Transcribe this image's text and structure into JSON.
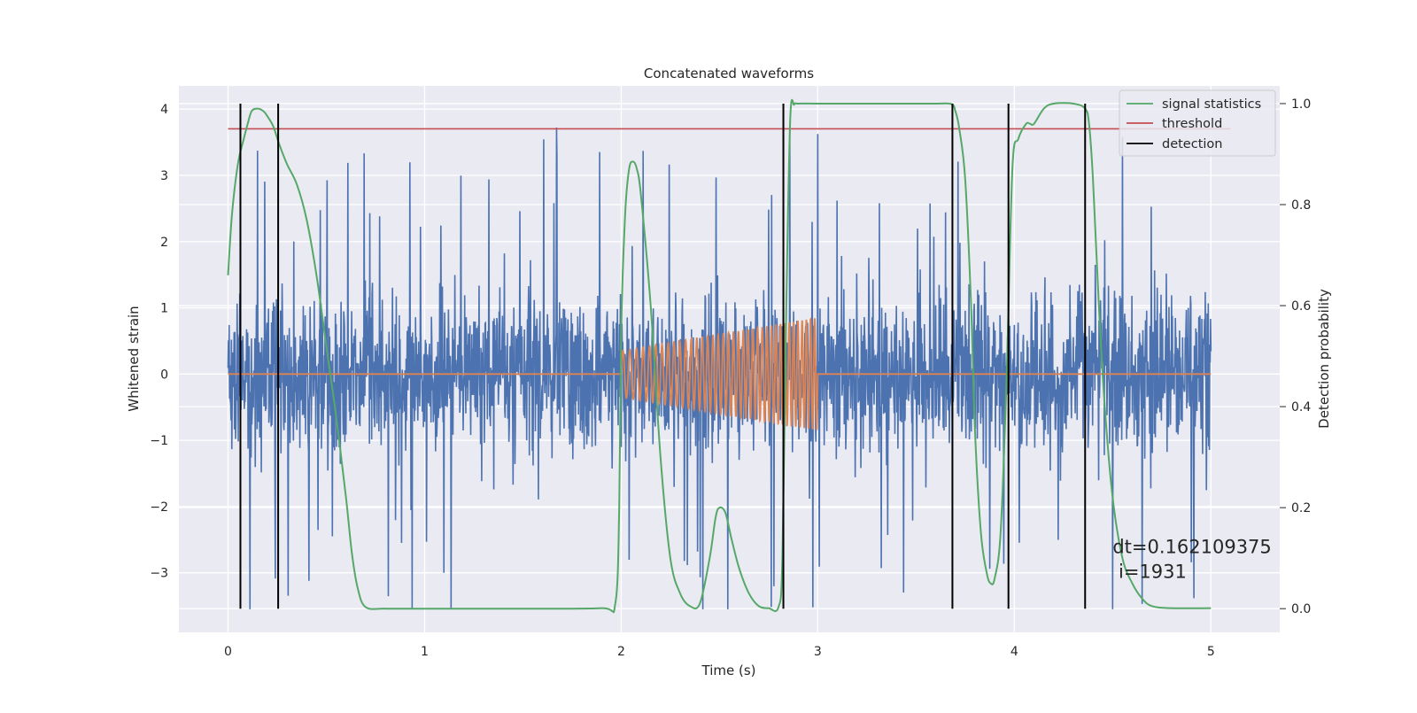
{
  "chart_data": {
    "type": "line",
    "title": "Concatenated waveforms",
    "xlabel": "Time (s)",
    "ylabel": "Whitened strain",
    "y2label": "Detection probability",
    "xlim": [
      -0.25,
      5.35
    ],
    "ylim": [
      -3.9,
      4.35
    ],
    "y2lim": [
      -0.047,
      1.035
    ],
    "xticks": [
      0,
      1,
      2,
      3,
      4,
      5
    ],
    "yticks": [
      -3,
      -2,
      -1,
      0,
      1,
      2,
      3,
      4
    ],
    "y2ticks": [
      0.0,
      0.2,
      0.4,
      0.6,
      0.8,
      1.0
    ],
    "xtick_labels": [
      "0",
      "1",
      "2",
      "3",
      "4",
      "5"
    ],
    "ytick_labels": [
      "−3",
      "−2",
      "−1",
      "0",
      "1",
      "2",
      "3",
      "4"
    ],
    "y2tick_labels": [
      "0.0",
      "0.2",
      "0.4",
      "0.6",
      "0.8",
      "1.0"
    ],
    "grid": true,
    "legend": {
      "position": "top-right",
      "entries": [
        "signal statistics",
        "threshold",
        "detection"
      ]
    },
    "series": [
      {
        "kind": "noise",
        "color": "#4c72b0",
        "x_range": [
          0,
          5
        ],
        "amplitude_envelope": [
          -3.55,
          4.0
        ]
      },
      {
        "kind": "injected_signal",
        "color": "#dd8452",
        "x_range": [
          0,
          5
        ],
        "chirp_window": [
          2.0,
          3.0
        ],
        "amp_start": 0.35,
        "amp_end": 0.85
      },
      {
        "name": "signal statistics",
        "axis": "y2",
        "color": "#55a868",
        "x": [
          0,
          0.02,
          0.05,
          0.08,
          0.1,
          0.12,
          0.15,
          0.18,
          0.2,
          0.23,
          0.26,
          0.3,
          0.35,
          0.4,
          0.45,
          0.5,
          0.55,
          0.6,
          0.63,
          0.66,
          0.7,
          0.8,
          1.0,
          1.5,
          1.9,
          1.97,
          1.99,
          2.0,
          2.02,
          2.04,
          2.06,
          2.08,
          2.1,
          2.15,
          2.2,
          2.25,
          2.3,
          2.35,
          2.4,
          2.45,
          2.48,
          2.5,
          2.53,
          2.56,
          2.6,
          2.65,
          2.7,
          2.75,
          2.8,
          2.82,
          2.84,
          2.86,
          2.88,
          2.9,
          3.0,
          3.3,
          3.6,
          3.68,
          3.7,
          3.72,
          3.75,
          3.78,
          3.8,
          3.83,
          3.86,
          3.88,
          3.9,
          3.93,
          3.96,
          3.99,
          4.02,
          4.06,
          4.08,
          4.1,
          4.15,
          4.2,
          4.3,
          4.36,
          4.38,
          4.4,
          4.43,
          4.46,
          4.5,
          4.55,
          4.6,
          4.65,
          4.7,
          4.8,
          5.0
        ],
        "values": [
          0.66,
          0.78,
          0.88,
          0.93,
          0.96,
          0.985,
          0.99,
          0.985,
          0.975,
          0.955,
          0.92,
          0.88,
          0.84,
          0.77,
          0.66,
          0.52,
          0.38,
          0.22,
          0.11,
          0.04,
          0.003,
          0.0,
          0.0,
          0.0,
          0.001,
          0.01,
          0.2,
          0.55,
          0.78,
          0.87,
          0.885,
          0.87,
          0.82,
          0.6,
          0.3,
          0.1,
          0.03,
          0.005,
          0.01,
          0.1,
          0.18,
          0.2,
          0.19,
          0.14,
          0.08,
          0.03,
          0.005,
          0.001,
          0.003,
          0.1,
          0.6,
          0.97,
          0.998,
          1.0,
          1.0,
          1.0,
          1.0,
          0.999,
          0.985,
          0.95,
          0.85,
          0.6,
          0.35,
          0.15,
          0.07,
          0.05,
          0.06,
          0.15,
          0.45,
          0.87,
          0.93,
          0.96,
          0.96,
          0.96,
          0.99,
          1.0,
          1.0,
          0.99,
          0.96,
          0.85,
          0.6,
          0.4,
          0.22,
          0.1,
          0.05,
          0.02,
          0.005,
          0.001,
          0.001
        ]
      },
      {
        "name": "threshold",
        "axis": "y2",
        "color": "#c44e52",
        "x": [
          0,
          5.1
        ],
        "values": [
          0.95,
          0.95
        ]
      }
    ],
    "detections": {
      "name": "detection",
      "color": "#000000",
      "x": [
        0.063,
        0.255,
        2.825,
        3.685,
        3.97,
        4.36
      ]
    },
    "annotation": {
      "line1": "dt=0.162109375",
      "line2": " i=1931",
      "x": 4.5,
      "y": -2.7
    }
  }
}
